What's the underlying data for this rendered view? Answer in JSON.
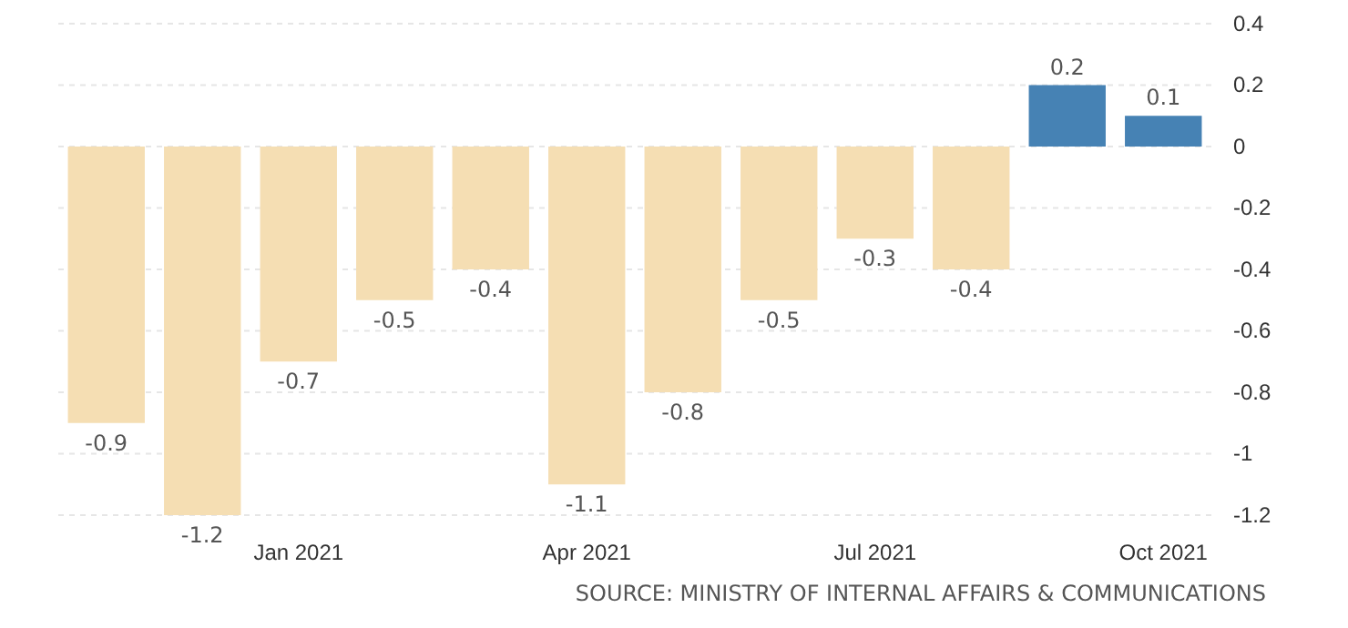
{
  "chart_data": {
    "type": "bar",
    "categories": [
      null,
      null,
      "Jan 2021",
      null,
      null,
      "Apr 2021",
      null,
      null,
      "Jul 2021",
      null,
      null,
      "Oct 2021"
    ],
    "values": [
      -0.9,
      -1.2,
      -0.7,
      -0.5,
      -0.4,
      -1.1,
      -0.8,
      -0.5,
      -0.3,
      -0.4,
      0.2,
      0.1
    ],
    "colors": [
      "#f5deb3",
      "#f5deb3",
      "#f5deb3",
      "#f5deb3",
      "#f5deb3",
      "#f5deb3",
      "#f5deb3",
      "#f5deb3",
      "#f5deb3",
      "#f5deb3",
      "#4682b4",
      "#4682b4"
    ],
    "ylim": [
      -1.2,
      0.4
    ],
    "yticks": [
      0.4,
      0.2,
      0,
      -0.2,
      -0.4,
      -0.6,
      -0.8,
      -1,
      -1.2
    ],
    "grid": "y",
    "data_labels": true,
    "annotations": [
      "SOURCE: MINISTRY OF INTERNAL AFFAIRS & COMMUNICATIONS"
    ]
  }
}
